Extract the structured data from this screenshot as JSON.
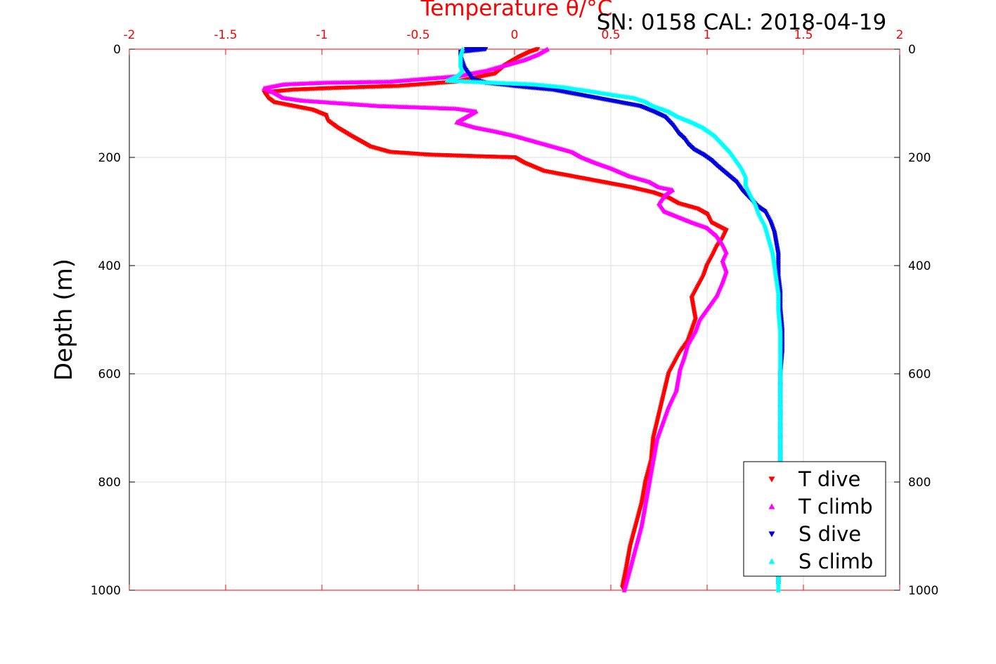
{
  "header": {
    "title": "Temperature θ/°C",
    "annotation": "SN: 0158  CAL: 2018-04-19"
  },
  "colors": {
    "top_axis": "#ff0000",
    "t_dive": "#ff0000",
    "t_climb": "#ff00ff",
    "s_dive": "#0000dd",
    "s_climb": "#00ffff",
    "grid": "#dddddd"
  },
  "chart_data": {
    "type": "scatter",
    "title": "Temperature θ/°C",
    "ylabel": "Depth (m)",
    "xlim": [
      -2,
      2
    ],
    "ylim": [
      0,
      1000
    ],
    "y_reversed": true,
    "grid": true,
    "legend_position": "bottom-right",
    "x_ticks": [
      "-2",
      "-1.5",
      "-1",
      "-0.5",
      "0",
      "0.5",
      "1",
      "1.5",
      "2"
    ],
    "y_ticks": [
      "0",
      "200",
      "400",
      "600",
      "800",
      "1000"
    ],
    "series": [
      {
        "name": "T dive",
        "marker": "triangle-down",
        "color": "#ff0000",
        "points": [
          [
            0.12,
            0
          ],
          [
            0.08,
            5
          ],
          [
            0.02,
            15
          ],
          [
            -0.05,
            30
          ],
          [
            -0.1,
            45
          ],
          [
            -0.3,
            60
          ],
          [
            -0.6,
            68
          ],
          [
            -0.95,
            72
          ],
          [
            -1.15,
            75
          ],
          [
            -1.3,
            80
          ],
          [
            -1.28,
            90
          ],
          [
            -1.25,
            98
          ],
          [
            -1.15,
            105
          ],
          [
            -1.05,
            112
          ],
          [
            -0.98,
            122
          ],
          [
            -0.97,
            132
          ],
          [
            -0.92,
            145
          ],
          [
            -0.85,
            160
          ],
          [
            -0.8,
            170
          ],
          [
            -0.75,
            180
          ],
          [
            -0.65,
            190
          ],
          [
            -0.45,
            195
          ],
          [
            -0.2,
            198
          ],
          [
            0,
            200
          ],
          [
            0.05,
            210
          ],
          [
            0.15,
            225
          ],
          [
            0.3,
            235
          ],
          [
            0.45,
            245
          ],
          [
            0.6,
            255
          ],
          [
            0.72,
            265
          ],
          [
            0.8,
            275
          ],
          [
            0.85,
            285
          ],
          [
            0.95,
            295
          ],
          [
            1.0,
            305
          ],
          [
            1.02,
            320
          ],
          [
            1.1,
            335
          ],
          [
            1.08,
            350
          ],
          [
            1.05,
            365
          ],
          [
            1.03,
            380
          ],
          [
            1.0,
            400
          ],
          [
            0.98,
            420
          ],
          [
            0.95,
            440
          ],
          [
            0.92,
            460
          ],
          [
            0.93,
            480
          ],
          [
            0.94,
            500
          ],
          [
            0.92,
            520
          ],
          [
            0.9,
            540
          ],
          [
            0.86,
            560
          ],
          [
            0.83,
            580
          ],
          [
            0.8,
            600
          ],
          [
            0.78,
            630
          ],
          [
            0.76,
            660
          ],
          [
            0.74,
            690
          ],
          [
            0.72,
            720
          ],
          [
            0.71,
            760
          ],
          [
            0.68,
            800
          ],
          [
            0.66,
            840
          ],
          [
            0.63,
            880
          ],
          [
            0.6,
            920
          ],
          [
            0.58,
            960
          ],
          [
            0.56,
            995
          ]
        ]
      },
      {
        "name": "T climb",
        "marker": "triangle-up",
        "color": "#ff00ff",
        "points": [
          [
            0.17,
            0
          ],
          [
            0.12,
            10
          ],
          [
            0.05,
            20
          ],
          [
            -0.05,
            30
          ],
          [
            -0.15,
            40
          ],
          [
            -0.3,
            50
          ],
          [
            -0.65,
            60
          ],
          [
            -1.0,
            62
          ],
          [
            -1.2,
            65
          ],
          [
            -1.3,
            72
          ],
          [
            -1.25,
            80
          ],
          [
            -1.2,
            90
          ],
          [
            -1.1,
            95
          ],
          [
            -0.9,
            100
          ],
          [
            -0.7,
            105
          ],
          [
            -0.45,
            108
          ],
          [
            -0.3,
            110
          ],
          [
            -0.2,
            115
          ],
          [
            -0.25,
            125
          ],
          [
            -0.3,
            135
          ],
          [
            -0.2,
            145
          ],
          [
            -0.1,
            152
          ],
          [
            0,
            160
          ],
          [
            0.1,
            170
          ],
          [
            0.2,
            180
          ],
          [
            0.3,
            190
          ],
          [
            0.35,
            200
          ],
          [
            0.42,
            210
          ],
          [
            0.5,
            220
          ],
          [
            0.6,
            235
          ],
          [
            0.7,
            245
          ],
          [
            0.75,
            255
          ],
          [
            0.82,
            260
          ],
          [
            0.78,
            270
          ],
          [
            0.75,
            285
          ],
          [
            0.78,
            300
          ],
          [
            0.85,
            310
          ],
          [
            0.92,
            320
          ],
          [
            1.0,
            330
          ],
          [
            1.05,
            345
          ],
          [
            1.08,
            360
          ],
          [
            1.1,
            375
          ],
          [
            1.08,
            390
          ],
          [
            1.1,
            410
          ],
          [
            1.08,
            430
          ],
          [
            1.05,
            455
          ],
          [
            1.02,
            470
          ],
          [
            0.99,
            485
          ],
          [
            0.96,
            500
          ],
          [
            0.94,
            520
          ],
          [
            0.9,
            545
          ],
          [
            0.88,
            570
          ],
          [
            0.86,
            590
          ],
          [
            0.85,
            610
          ],
          [
            0.84,
            630
          ],
          [
            0.8,
            660
          ],
          [
            0.77,
            690
          ],
          [
            0.74,
            720
          ],
          [
            0.72,
            760
          ],
          [
            0.7,
            800
          ],
          [
            0.68,
            840
          ],
          [
            0.66,
            880
          ],
          [
            0.63,
            920
          ],
          [
            0.6,
            960
          ],
          [
            0.57,
            1000
          ]
        ]
      },
      {
        "name": "S dive",
        "marker": "triangle-down",
        "color": "#0000dd",
        "points": [
          [
            -0.25,
            0
          ],
          [
            -0.15,
            0
          ],
          [
            -0.28,
            5
          ],
          [
            -0.28,
            15
          ],
          [
            -0.27,
            25
          ],
          [
            -0.26,
            35
          ],
          [
            -0.24,
            45
          ],
          [
            -0.22,
            55
          ],
          [
            -0.15,
            62
          ],
          [
            0.05,
            70
          ],
          [
            0.2,
            75
          ],
          [
            0.35,
            85
          ],
          [
            0.5,
            95
          ],
          [
            0.65,
            105
          ],
          [
            0.72,
            115
          ],
          [
            0.78,
            125
          ],
          [
            0.82,
            140
          ],
          [
            0.85,
            155
          ],
          [
            0.88,
            165
          ],
          [
            0.9,
            175
          ],
          [
            0.93,
            185
          ],
          [
            0.98,
            195
          ],
          [
            1.02,
            205
          ],
          [
            1.05,
            215
          ],
          [
            1.1,
            230
          ],
          [
            1.15,
            245
          ],
          [
            1.18,
            260
          ],
          [
            1.22,
            275
          ],
          [
            1.26,
            290
          ],
          [
            1.3,
            300
          ],
          [
            1.33,
            320
          ],
          [
            1.35,
            340
          ],
          [
            1.36,
            360
          ],
          [
            1.37,
            380
          ],
          [
            1.37,
            400
          ],
          [
            1.37,
            420
          ],
          [
            1.38,
            450
          ],
          [
            1.38,
            480
          ],
          [
            1.39,
            520
          ],
          [
            1.39,
            560
          ],
          [
            1.38,
            600
          ],
          [
            1.38,
            650
          ],
          [
            1.38,
            700
          ],
          [
            1.38,
            750
          ],
          [
            1.38,
            800
          ],
          [
            1.38,
            850
          ],
          [
            1.38,
            900
          ],
          [
            1.37,
            950
          ],
          [
            1.37,
            990
          ]
        ]
      },
      {
        "name": "S climb",
        "marker": "triangle-up",
        "color": "#00ffff",
        "points": [
          [
            -0.27,
            0
          ],
          [
            -0.28,
            10
          ],
          [
            -0.28,
            20
          ],
          [
            -0.28,
            30
          ],
          [
            -0.27,
            40
          ],
          [
            -0.3,
            50
          ],
          [
            -0.35,
            58
          ],
          [
            -0.1,
            62
          ],
          [
            0.1,
            65
          ],
          [
            0.25,
            70
          ],
          [
            0.4,
            78
          ],
          [
            0.52,
            85
          ],
          [
            0.62,
            90
          ],
          [
            0.68,
            97
          ],
          [
            0.72,
            105
          ],
          [
            0.8,
            115
          ],
          [
            0.85,
            125
          ],
          [
            0.92,
            135
          ],
          [
            0.98,
            145
          ],
          [
            1.04,
            160
          ],
          [
            1.08,
            175
          ],
          [
            1.12,
            190
          ],
          [
            1.15,
            205
          ],
          [
            1.18,
            220
          ],
          [
            1.2,
            235
          ],
          [
            1.2,
            250
          ],
          [
            1.22,
            265
          ],
          [
            1.25,
            285
          ],
          [
            1.27,
            305
          ],
          [
            1.3,
            325
          ],
          [
            1.32,
            350
          ],
          [
            1.34,
            375
          ],
          [
            1.35,
            400
          ],
          [
            1.36,
            425
          ],
          [
            1.37,
            450
          ],
          [
            1.37,
            480
          ],
          [
            1.38,
            520
          ],
          [
            1.38,
            560
          ],
          [
            1.38,
            600
          ],
          [
            1.38,
            650
          ],
          [
            1.38,
            700
          ],
          [
            1.38,
            750
          ],
          [
            1.38,
            800
          ],
          [
            1.38,
            850
          ],
          [
            1.37,
            900
          ],
          [
            1.37,
            950
          ],
          [
            1.37,
            1000
          ]
        ]
      }
    ]
  }
}
